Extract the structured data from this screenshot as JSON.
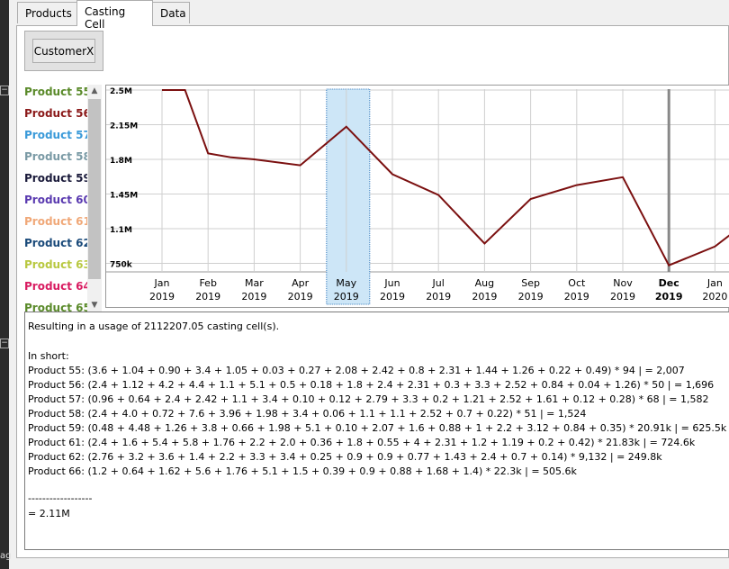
{
  "tabs": [
    {
      "label": "Products"
    },
    {
      "label": "Casting Cell"
    },
    {
      "label": "Data"
    }
  ],
  "customer_button": {
    "label": "CustomerX"
  },
  "side_tag": "ag",
  "legend": [
    {
      "label": "Product 55",
      "color": "#5a8a2a"
    },
    {
      "label": "Product 56",
      "color": "#8b1a1a"
    },
    {
      "label": "Product 57",
      "color": "#3a9ad9"
    },
    {
      "label": "Product 58",
      "color": "#7a9aa5"
    },
    {
      "label": "Product 59",
      "color": "#1a1a3a"
    },
    {
      "label": "Product 60",
      "color": "#5a3ab0"
    },
    {
      "label": "Product 61",
      "color": "#f0a878"
    },
    {
      "label": "Product 62",
      "color": "#1a4a7a"
    },
    {
      "label": "Product 63",
      "color": "#b8c840"
    },
    {
      "label": "Product 64",
      "color": "#d81b60"
    },
    {
      "label": "Product 65",
      "color": "#5a8a2a"
    }
  ],
  "chart_data": {
    "type": "line",
    "x": [
      "Jan 2019",
      "Feb 2019",
      "Mar 2019",
      "Apr 2019",
      "May 2019",
      "Jun 2019",
      "Jul 2019",
      "Aug 2019",
      "Sep 2019",
      "Oct 2019",
      "Nov 2019",
      "Dec 2019",
      "Jan 2020"
    ],
    "x_tick_labels": [
      [
        "Jan",
        "2019"
      ],
      [
        "Feb",
        "2019"
      ],
      [
        "Mar",
        "2019"
      ],
      [
        "Apr",
        "2019"
      ],
      [
        "May",
        "2019"
      ],
      [
        "Jun",
        "2019"
      ],
      [
        "Jul",
        "2019"
      ],
      [
        "Aug",
        "2019"
      ],
      [
        "Sep",
        "2019"
      ],
      [
        "Oct",
        "2019"
      ],
      [
        "Nov",
        "2019"
      ],
      [
        "Dec",
        "2019"
      ],
      [
        "Jan",
        "2020"
      ]
    ],
    "bold_tick_index": 11,
    "selected_index": 4,
    "y_tick_labels": [
      "2.5M",
      "2.15M",
      "1.8M",
      "1.45M",
      "1.1M",
      "750k"
    ],
    "y_ticks": [
      2500000,
      2150000,
      1800000,
      1450000,
      1100000,
      750000
    ],
    "ylim": [
      700000,
      2500000
    ],
    "series": [
      {
        "color": "#7b1010",
        "points": [
          [
            0,
            2500000
          ],
          [
            0.5,
            2500000
          ],
          [
            1,
            1860000
          ],
          [
            1.5,
            1820000
          ],
          [
            2,
            1800000
          ],
          [
            3,
            1740000
          ],
          [
            4,
            2130000
          ],
          [
            5,
            1650000
          ],
          [
            6,
            1440000
          ],
          [
            7,
            950000
          ],
          [
            8,
            1400000
          ],
          [
            9,
            1540000
          ],
          [
            10,
            1620000
          ],
          [
            11,
            730000
          ],
          [
            12,
            920000
          ],
          [
            12.5,
            1100000
          ]
        ]
      }
    ]
  },
  "text": {
    "usage": "Resulting in a usage of 2112207.05 casting cell(s).",
    "in_short": "In short:",
    "lines": [
      "Product 55: (3.6 + 1.04 + 0.90 + 3.4 + 1.05 + 0.03 + 0.27 + 2.08 + 2.42 + 0.8 + 2.31 + 1.44 + 1.26 + 0.22 + 0.49) * 94  | = 2,007",
      "Product 56: (2.4 + 1.12 + 4.2 + 4.4 + 1.1 + 5.1 + 0.5 + 0.18 + 1.8 + 2.4 + 2.31 + 0.3 + 3.3 + 2.52 + 0.84 + 0.04 + 1.26) * 50  | = 1,696",
      "Product 57: (0.96 + 0.64 + 2.4 + 2.42 + 1.1 + 3.4 + 0.10 + 0.12 + 2.79 + 3.3 + 0.2 + 1.21 + 2.52 + 1.61 + 0.12 + 0.28) * 68  | = 1,582",
      "Product 58: (2.4 + 4.0 + 0.72 + 7.6 + 3.96 + 1.98 + 3.4 + 0.06 + 1.1 + 1.1 + 2.52 + 0.7 + 0.22) * 51  | = 1,524",
      "Product 59: (0.48 + 4.48 + 1.26 + 3.8 + 0.66 + 1.98 + 5.1 + 0.10 + 2.07 + 1.6 + 0.88 + 1 + 2.2 + 3.12 + 0.84 + 0.35) * 20.91k  | = 625.5k",
      "Product 61: (2.4 + 1.6 + 5.4 + 5.8 + 1.76 + 2.2 + 2.0 + 0.36 + 1.8 + 0.55 + 4 + 2.31 + 1.2 + 1.19 + 0.2 + 0.42) * 21.83k  | = 724.6k",
      "Product 62: (2.76 + 3.2 + 3.6 + 1.4 + 2.2 + 3.3 + 3.4 + 0.25 + 0.9 + 0.9 + 0.77 + 1.43 + 2.4 + 0.7 + 0.14) * 9,132  | = 249.8k",
      "Product 66: (1.2 + 0.64 + 1.62 + 5.6 + 1.76 + 5.1 + 1.5 + 0.39 + 0.9 + 0.88 + 1.68 + 1.4) * 22.3k  | = 505.6k"
    ],
    "separator": "------------------",
    "total": "= 2.11M"
  }
}
